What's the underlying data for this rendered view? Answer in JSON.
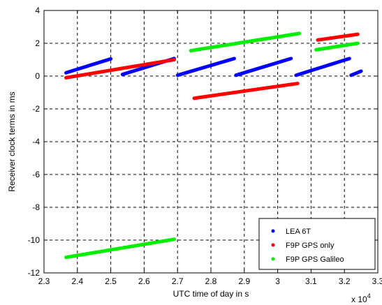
{
  "chart_data": {
    "type": "line",
    "xlabel": "UTC time of day in s",
    "ylabel": "Receiver clock terms in ms",
    "x_multiplier_label": "x 10",
    "x_multiplier_exponent": "4",
    "xlim": [
      2.3,
      3.3
    ],
    "ylim": [
      -12,
      4
    ],
    "xticks": [
      "2.3",
      "2.4",
      "2.5",
      "2.6",
      "2.7",
      "2.8",
      "2.9",
      "3",
      "3.1",
      "3.2",
      "3.3"
    ],
    "xtick_values": [
      2.3,
      2.4,
      2.5,
      2.6,
      2.7,
      2.8,
      2.9,
      3.0,
      3.1,
      3.2,
      3.3
    ],
    "yticks": [
      "-12",
      "-10",
      "-8",
      "-6",
      "-4",
      "-2",
      "0",
      "2",
      "4"
    ],
    "ytick_values": [
      -12,
      -10,
      -8,
      -6,
      -4,
      -2,
      0,
      2,
      4
    ],
    "grid": true,
    "grid_style": "dashed",
    "legend_position": "bottom-right",
    "series": [
      {
        "name": "LEA 6T",
        "color": "#0000ff",
        "segments": [
          [
            [
              2.366,
              0.2
            ],
            [
              2.5,
              1.05
            ]
          ],
          [
            [
              2.535,
              0.1
            ],
            [
              2.69,
              1.07
            ]
          ],
          [
            [
              2.7,
              0.05
            ],
            [
              2.87,
              1.07
            ]
          ],
          [
            [
              2.875,
              0.05
            ],
            [
              3.04,
              1.07
            ]
          ],
          [
            [
              3.055,
              0.05
            ],
            [
              3.215,
              1.07
            ]
          ],
          [
            [
              3.22,
              0.05
            ],
            [
              3.25,
              0.3
            ]
          ]
        ]
      },
      {
        "name": "F9P GPS only",
        "color": "#ff0000",
        "segments": [
          [
            [
              2.366,
              -0.1
            ],
            [
              2.69,
              1.0
            ]
          ],
          [
            [
              2.75,
              -1.35
            ],
            [
              3.06,
              -0.45
            ]
          ],
          [
            [
              3.12,
              2.2
            ],
            [
              3.24,
              2.55
            ]
          ]
        ]
      },
      {
        "name": "F9P GPS Galileo",
        "color": "#00ee00",
        "segments": [
          [
            [
              2.366,
              -11.05
            ],
            [
              2.69,
              -9.95
            ]
          ],
          [
            [
              2.74,
              1.55
            ],
            [
              3.065,
              2.6
            ]
          ],
          [
            [
              3.115,
              1.6
            ],
            [
              3.24,
              2.0
            ]
          ]
        ]
      }
    ]
  }
}
